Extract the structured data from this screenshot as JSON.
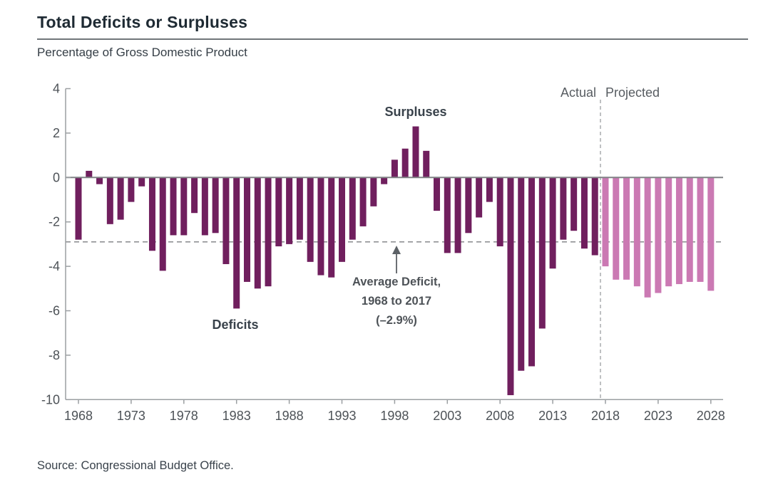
{
  "header": {
    "title": "Total Deficits or Surpluses",
    "subtitle": "Percentage of Gross Domestic Product"
  },
  "annotations": {
    "surpluses_label": "Surpluses",
    "deficits_label": "Deficits",
    "average_line1": "Average Deficit,",
    "average_line2": "1968 to 2017",
    "average_line3": "(–2.9%)",
    "actual_label": "Actual",
    "projected_label": "Projected"
  },
  "source": {
    "text": "Source: Congressional Budget Office."
  },
  "chart_data": {
    "type": "bar",
    "title": "Total Deficits or Surpluses",
    "ylabel": "Percentage of Gross Domestic Product",
    "ylim": [
      -10,
      4
    ],
    "y_ticks": [
      4,
      2,
      0,
      -2,
      -4,
      -6,
      -8,
      -10
    ],
    "x_tick_years": [
      1968,
      1973,
      1978,
      1983,
      1988,
      1993,
      1998,
      2003,
      2008,
      2013,
      2018,
      2023,
      2028
    ],
    "grid": false,
    "legend": "none",
    "projected_start_year": 2018,
    "average_deficit_1968_2017": -2.9,
    "colors": {
      "actual_bar": "#701f5e",
      "projected_bar": "#cb79b3",
      "zero_line": "#808285",
      "axis": "#9b9fa2",
      "dashed_line": "#87898c"
    },
    "years": [
      1968,
      1969,
      1970,
      1971,
      1972,
      1973,
      1974,
      1975,
      1976,
      1977,
      1978,
      1979,
      1980,
      1981,
      1982,
      1983,
      1984,
      1985,
      1986,
      1987,
      1988,
      1989,
      1990,
      1991,
      1992,
      1993,
      1994,
      1995,
      1996,
      1997,
      1998,
      1999,
      2000,
      2001,
      2002,
      2003,
      2004,
      2005,
      2006,
      2007,
      2008,
      2009,
      2010,
      2011,
      2012,
      2013,
      2014,
      2015,
      2016,
      2017,
      2018,
      2019,
      2020,
      2021,
      2022,
      2023,
      2024,
      2025,
      2026,
      2027,
      2028
    ],
    "values": [
      -2.8,
      0.3,
      -0.3,
      -2.1,
      -1.9,
      -1.1,
      -0.4,
      -3.3,
      -4.2,
      -2.6,
      -2.6,
      -1.6,
      -2.6,
      -2.5,
      -3.9,
      -5.9,
      -4.7,
      -5.0,
      -4.9,
      -3.1,
      -3.0,
      -2.8,
      -3.8,
      -4.4,
      -4.5,
      -3.8,
      -2.8,
      -2.2,
      -1.3,
      -0.3,
      0.8,
      1.3,
      2.3,
      1.2,
      -1.5,
      -3.4,
      -3.4,
      -2.5,
      -1.8,
      -1.1,
      -3.1,
      -9.8,
      -8.7,
      -8.5,
      -6.8,
      -4.1,
      -2.8,
      -2.4,
      -3.2,
      -3.5,
      -4.0,
      -4.6,
      -4.6,
      -4.9,
      -5.4,
      -5.2,
      -4.9,
      -4.8,
      -4.7,
      -4.7,
      -5.1
    ]
  }
}
